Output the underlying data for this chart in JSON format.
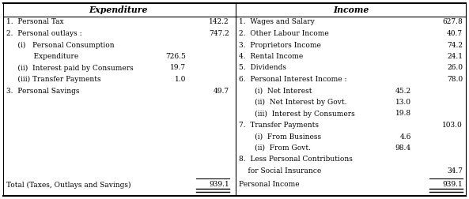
{
  "title_left": "Expenditure",
  "title_right": "Income",
  "expenditure_rows": [
    {
      "label": "1.  Personal Tax",
      "sub_val": null,
      "main_val": "142.2"
    },
    {
      "label": "2.  Personal outlays :",
      "sub_val": null,
      "main_val": "747.2"
    },
    {
      "label": "     (i)   Personal Consumption",
      "sub_val": null,
      "main_val": null
    },
    {
      "label": "            Expenditure",
      "sub_val": "726.5",
      "main_val": null
    },
    {
      "label": "     (ii)  Interest paid by Consumers",
      "sub_val": "19.7",
      "main_val": null
    },
    {
      "label": "     (iii) Transfer Payments",
      "sub_val": "1.0",
      "main_val": null
    },
    {
      "label": "3.  Personal Savings",
      "sub_val": null,
      "main_val": "49.7"
    }
  ],
  "income_rows": [
    {
      "label": "1.  Wages and Salary",
      "sub_val": null,
      "main_val": "627.8"
    },
    {
      "label": "2.  Other Labour Income",
      "sub_val": null,
      "main_val": "40.7"
    },
    {
      "label": "3.  Proprietors Income",
      "sub_val": null,
      "main_val": "74.2"
    },
    {
      "label": "4.  Rental Income",
      "sub_val": null,
      "main_val": "24.1"
    },
    {
      "label": "5.  Dividends",
      "sub_val": null,
      "main_val": "26.0"
    },
    {
      "label": "6.  Personal Interest Income :",
      "sub_val": null,
      "main_val": "78.0"
    },
    {
      "label": "       (i)  Net Interest",
      "sub_val": "45.2",
      "main_val": null
    },
    {
      "label": "       (ii)  Net Interest by Govt.",
      "sub_val": "13.0",
      "main_val": null
    },
    {
      "label": "       (iii)  Interest by Consumers",
      "sub_val": "19.8",
      "main_val": null
    },
    {
      "label": "7.  Transfer Payments",
      "sub_val": null,
      "main_val": "103.0"
    },
    {
      "label": "       (i)  From Business",
      "sub_val": "4.6",
      "main_val": null
    },
    {
      "label": "       (ii)  From Govt.",
      "sub_val": "98.4",
      "main_val": null
    },
    {
      "label": "8.  Less Personal Contributions",
      "sub_val": null,
      "main_val": null
    },
    {
      "label": "    for Social Insurance",
      "sub_val": null,
      "main_val": "34.7"
    }
  ],
  "total_left_label": "Total (Taxes, Outlays and Savings)",
  "total_left_val": "939.1",
  "total_right_label": "Personal Income",
  "total_right_val": "939.1",
  "bg_color": "#ffffff",
  "text_color": "#000000",
  "font_size": 6.5,
  "header_font_size": 7.8
}
